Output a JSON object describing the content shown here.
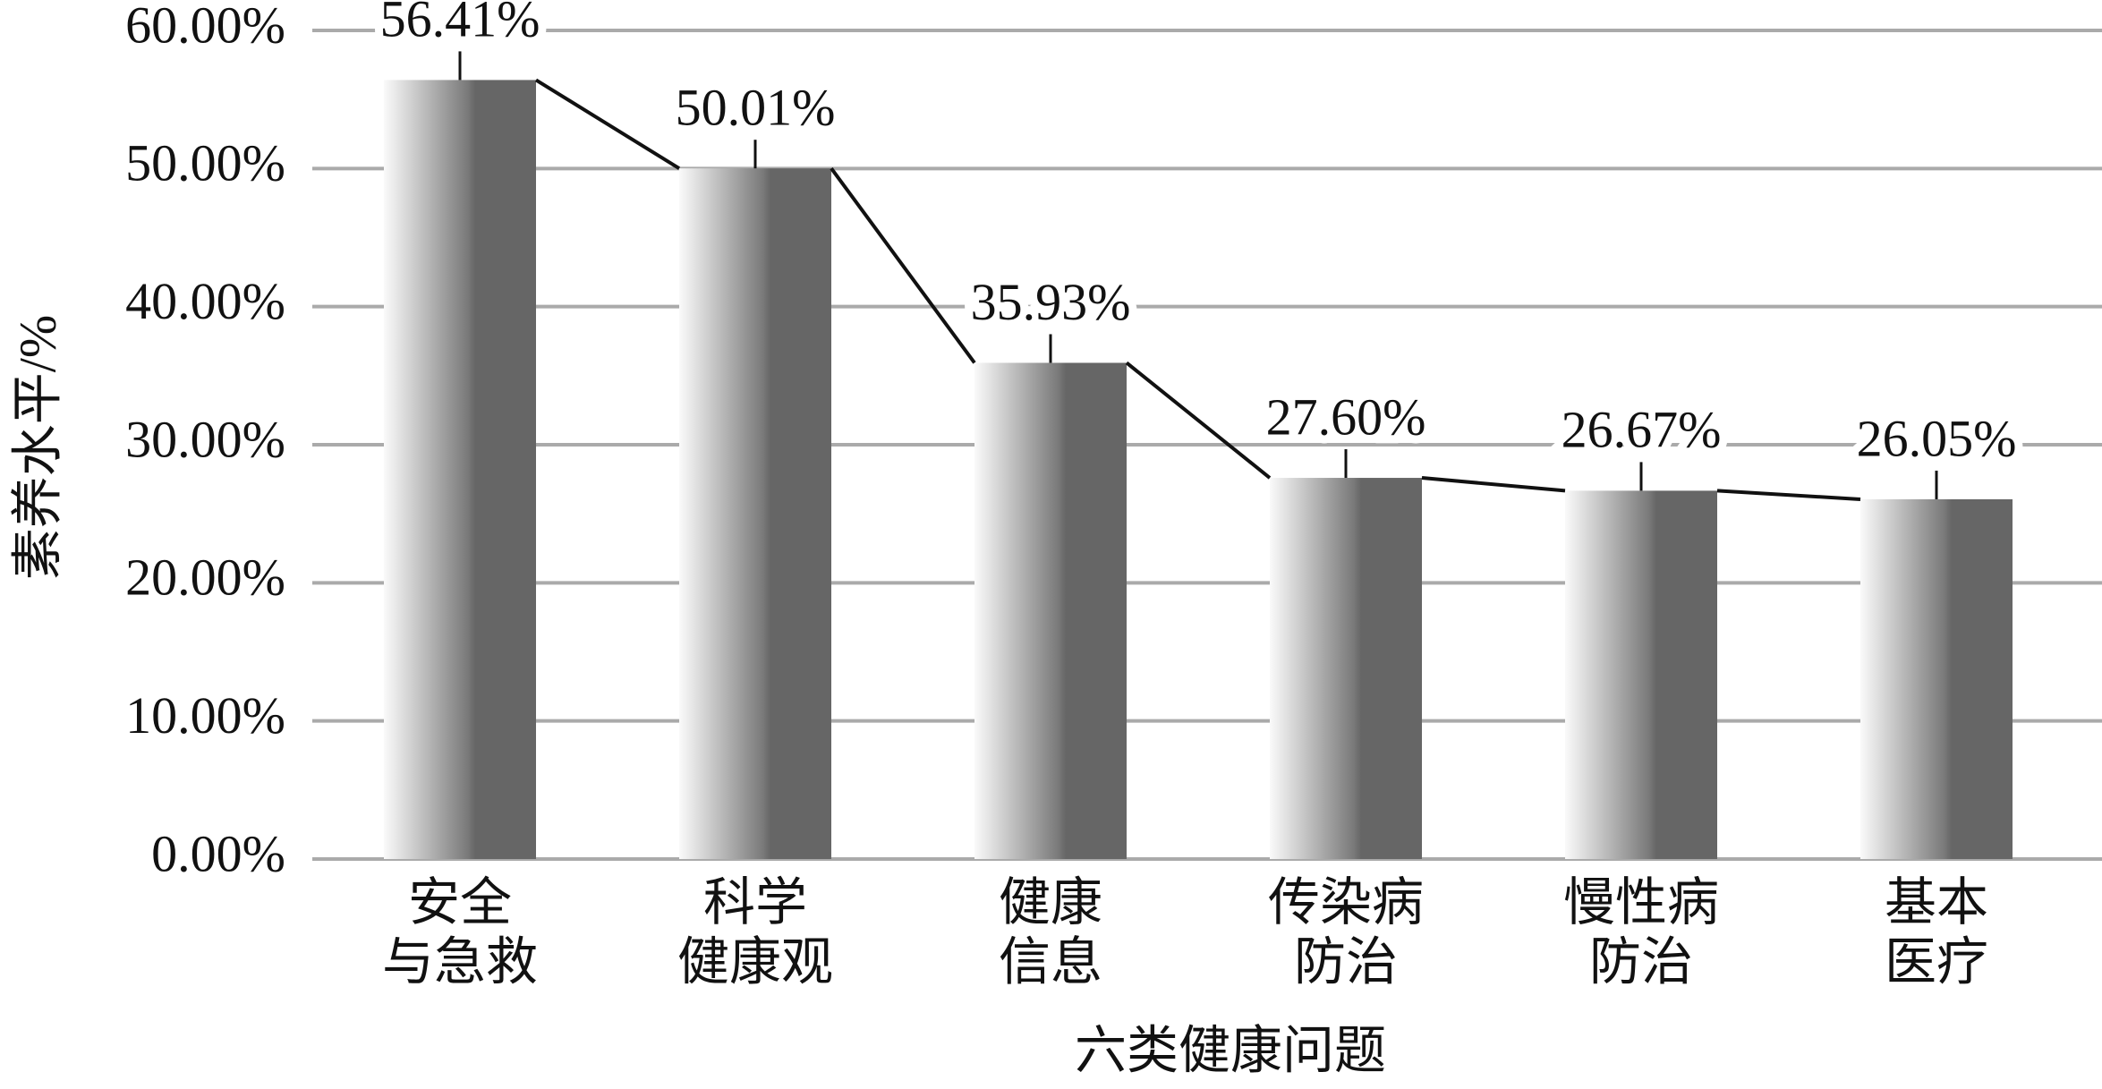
{
  "chart_data": {
    "type": "bar",
    "y_label": "素养水平/%",
    "x_label": "六类健康问题",
    "categories": [
      "安全\n与急救",
      "科学\n健康观",
      "健康\n信息",
      "传染病\n防治",
      "慢性病\n防治",
      "基本\n医疗"
    ],
    "values": [
      56.41,
      50.01,
      35.93,
      27.6,
      26.67,
      26.05
    ],
    "value_labels": [
      "56.41%",
      "50.01%",
      "35.93%",
      "27.60%",
      "26.67%",
      "26.05%"
    ],
    "color": "#666666",
    "connecting_line": true,
    "ylim": [
      0,
      60
    ],
    "yticks": [
      {
        "value": 0,
        "label": "0.00%"
      },
      {
        "value": 10,
        "label": "10.00%"
      },
      {
        "value": 20,
        "label": "20.00%"
      },
      {
        "value": 30,
        "label": "30.00%"
      },
      {
        "value": 40,
        "label": "40.00%"
      },
      {
        "value": 50,
        "label": "50.00%"
      },
      {
        "value": 60,
        "label": "60.00%"
      }
    ],
    "grid": true
  }
}
